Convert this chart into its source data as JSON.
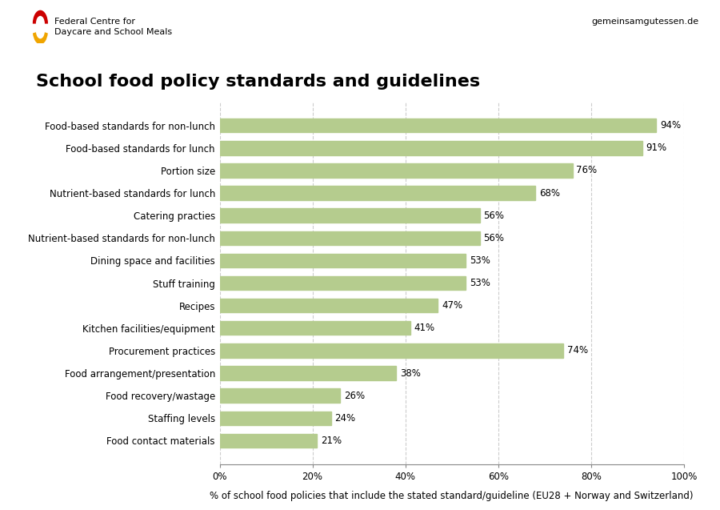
{
  "title": "School food policy standards and guidelines",
  "categories": [
    "Food-based standards for non-lunch",
    "Food-based standards for lunch",
    "Portion size",
    "Nutrient-based standards for lunch",
    "Catering practies",
    "Nutrient-based standards for non-lunch",
    "Dining space and facilities",
    "Stuff training",
    "Recipes",
    "Kitchen facilities/equipment",
    "Procurement practices",
    "Food arrangement/presentation",
    "Food recovery/wastage",
    "Staffing levels",
    "Food contact materials"
  ],
  "values": [
    94,
    91,
    76,
    68,
    56,
    56,
    53,
    53,
    47,
    41,
    74,
    38,
    26,
    24,
    21
  ],
  "bar_color": "#b5cc8e",
  "xlabel": "% of school food policies that include the stated standard/guideline (EU28 + Norway and Switzerland)",
  "xlim": [
    0,
    100
  ],
  "xticks": [
    0,
    20,
    40,
    60,
    80,
    100
  ],
  "xticklabels": [
    "0%",
    "20%",
    "40%",
    "60%",
    "80%",
    "100%"
  ],
  "grid_color": "#cccccc",
  "background_color": "#ffffff",
  "header_left_line1": "Federal Centre for",
  "header_left_line2": "Daycare and School Meals",
  "header_right": "gemeinsamgutessen.de",
  "title_fontsize": 16,
  "label_fontsize": 8.5,
  "value_fontsize": 8.5,
  "xlabel_fontsize": 8.5,
  "header_fontsize": 8,
  "logo_red": "#cc0000",
  "logo_gold": "#f0a500"
}
